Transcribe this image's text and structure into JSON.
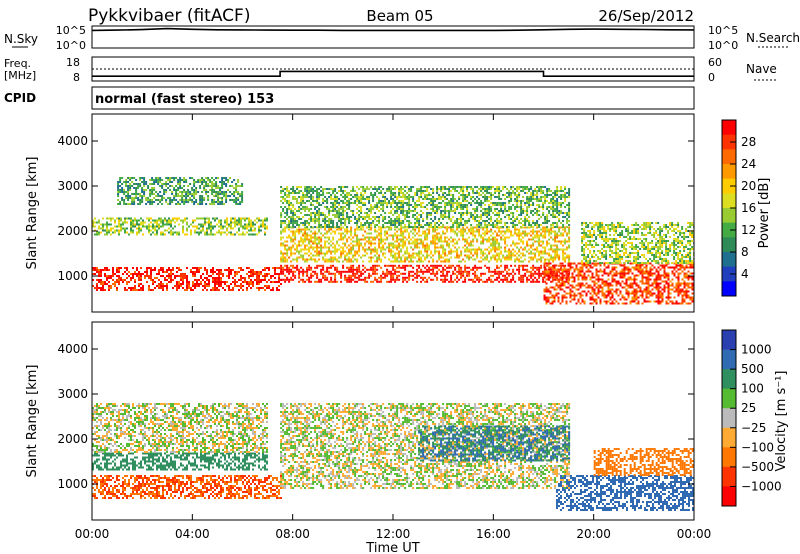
{
  "header": {
    "station": "Pykkvibaer (fitACF)",
    "beam": "Beam 05",
    "date": "26/Sep/2012"
  },
  "noise_panel": {
    "left_label": "N.Sky",
    "right_label": "N.Search",
    "left_ticks": [
      "10^5",
      "10^0"
    ],
    "right_ticks": [
      "10^5",
      "10^0"
    ]
  },
  "freq_panel": {
    "left_label_line1": "Freq.",
    "left_label_line2": "[MHz]",
    "right_label": "Nave",
    "left_ticks": [
      "18",
      "8"
    ],
    "right_ticks": [
      "60",
      "0"
    ]
  },
  "cpid": {
    "label": "CPID",
    "value": "normal (fast stereo) 153"
  },
  "x_axis": {
    "title": "Time UT",
    "ticks": [
      "00:00",
      "04:00",
      "08:00",
      "12:00",
      "16:00",
      "20:00",
      "00:00"
    ]
  },
  "colorbars": {
    "power": {
      "label": "Power [dB]",
      "ticks": [
        "28",
        "24",
        "20",
        "16",
        "12",
        "8",
        "4"
      ],
      "colors": [
        "#ff0000",
        "#ff3300",
        "#ff6a00",
        "#ff9900",
        "#ffcc00",
        "#dddd22",
        "#99cc33",
        "#44aa44",
        "#2e8b57",
        "#1f6f8f",
        "#1f3fbf",
        "#0000ff"
      ]
    },
    "velocity": {
      "label": "Velocity [m s⁻¹]",
      "ticks": [
        "1000",
        "500",
        "100",
        "25",
        "−25",
        "−100",
        "−500",
        "−1000"
      ],
      "colors": [
        "#2a3fb0",
        "#2f6ab3",
        "#2f8f5f",
        "#55bb33",
        "#bbbbbb",
        "#ffaa33",
        "#ff7700",
        "#ff3300",
        "#ff0000"
      ]
    }
  },
  "chart_data": [
    {
      "type": "heatmap",
      "title": "Power",
      "xlabel": "Time UT",
      "ylabel": "Slant Range [km]",
      "x_range": [
        "00:00",
        "24:00"
      ],
      "ylim": [
        200,
        4600
      ],
      "y_ticks": [
        1000,
        2000,
        3000,
        4000
      ],
      "colorbar": {
        "label": "Power [dB]",
        "range": [
          0,
          30
        ],
        "ticks": [
          4,
          8,
          12,
          16,
          20,
          24,
          28
        ]
      },
      "echo_bands": [
        {
          "t_start": 0.0,
          "t_end": 7.5,
          "range_low_km": 700,
          "range_high_km": 1200,
          "power_dB": 28
        },
        {
          "t_start": 0.0,
          "t_end": 7.0,
          "range_low_km": 1900,
          "range_high_km": 2300,
          "power_dB": 14
        },
        {
          "t_start": 1.0,
          "t_end": 6.0,
          "range_low_km": 2600,
          "range_high_km": 3200,
          "power_dB": 10
        },
        {
          "t_start": 7.5,
          "t_end": 19.0,
          "range_low_km": 850,
          "range_high_km": 1250,
          "power_dB": 28
        },
        {
          "t_start": 7.5,
          "t_end": 19.0,
          "range_low_km": 1300,
          "range_high_km": 2100,
          "power_dB": 18
        },
        {
          "t_start": 7.5,
          "t_end": 19.0,
          "range_low_km": 2100,
          "range_high_km": 3000,
          "power_dB": 12
        },
        {
          "t_start": 18.0,
          "t_end": 24.0,
          "range_low_km": 400,
          "range_high_km": 1300,
          "power_dB": 26
        },
        {
          "t_start": 19.5,
          "t_end": 24.0,
          "range_low_km": 1300,
          "range_high_km": 2200,
          "power_dB": 14
        }
      ]
    },
    {
      "type": "heatmap",
      "title": "Velocity",
      "xlabel": "Time UT",
      "ylabel": "Slant Range [km]",
      "x_range": [
        "00:00",
        "24:00"
      ],
      "ylim": [
        200,
        4600
      ],
      "y_ticks": [
        1000,
        2000,
        3000,
        4000
      ],
      "colorbar": {
        "label": "Velocity [m s⁻¹]",
        "range": [
          -1000,
          1000
        ],
        "ticks": [
          1000,
          500,
          100,
          25,
          -25,
          -100,
          -500,
          -1000
        ]
      },
      "echo_bands": [
        {
          "t_start": 0.0,
          "t_end": 7.5,
          "range_low_km": 700,
          "range_high_km": 1200,
          "velocity_ms": -300
        },
        {
          "t_start": 0.0,
          "t_end": 7.0,
          "range_low_km": 1300,
          "range_high_km": 1700,
          "velocity_ms": 150
        },
        {
          "t_start": 0.0,
          "t_end": 7.0,
          "range_low_km": 1700,
          "range_high_km": 2800,
          "velocity_ms": 0
        },
        {
          "t_start": 7.5,
          "t_end": 19.0,
          "range_low_km": 900,
          "range_high_km": 2800,
          "velocity_ms": 0
        },
        {
          "t_start": 13.0,
          "t_end": 19.0,
          "range_low_km": 1500,
          "range_high_km": 2300,
          "velocity_ms": 300
        },
        {
          "t_start": 18.5,
          "t_end": 24.0,
          "range_low_km": 400,
          "range_high_km": 1200,
          "velocity_ms": 400
        },
        {
          "t_start": 20.0,
          "t_end": 24.0,
          "range_low_km": 1200,
          "range_high_km": 1800,
          "velocity_ms": -120
        }
      ]
    },
    {
      "type": "line",
      "title": "N.Sky",
      "xlabel": "Time UT",
      "ylabel": "N.Sky",
      "x": [
        0,
        1,
        2,
        3,
        4,
        5,
        6,
        7,
        8,
        9,
        10,
        11,
        12,
        13,
        14,
        15,
        16,
        17,
        18,
        19,
        20,
        21,
        22,
        23,
        24
      ],
      "series": [
        {
          "name": "N.Sky",
          "values": [
            10000,
            12000,
            15000,
            25000,
            18000,
            14000,
            13000,
            12000,
            11000,
            11000,
            10000,
            10000,
            10000,
            10000,
            10000,
            10000,
            10000,
            11000,
            14000,
            18000,
            20000,
            18000,
            16000,
            14000,
            13000
          ]
        }
      ],
      "y_scale": "log",
      "ylim": [
        1,
        100000
      ]
    },
    {
      "type": "line",
      "title": "Freq.",
      "xlabel": "Time UT",
      "ylabel": "Freq. [MHz]",
      "x": [
        0,
        7.5,
        7.5,
        18.0,
        18.0,
        24.0
      ],
      "series": [
        {
          "name": "Freq.",
          "values": [
            10.0,
            10.0,
            12.0,
            12.0,
            10.0,
            10.0
          ]
        },
        {
          "name": "Nave",
          "values": [
            30,
            30,
            30,
            30,
            30,
            30
          ]
        }
      ],
      "ylim": [
        8,
        18
      ]
    }
  ]
}
